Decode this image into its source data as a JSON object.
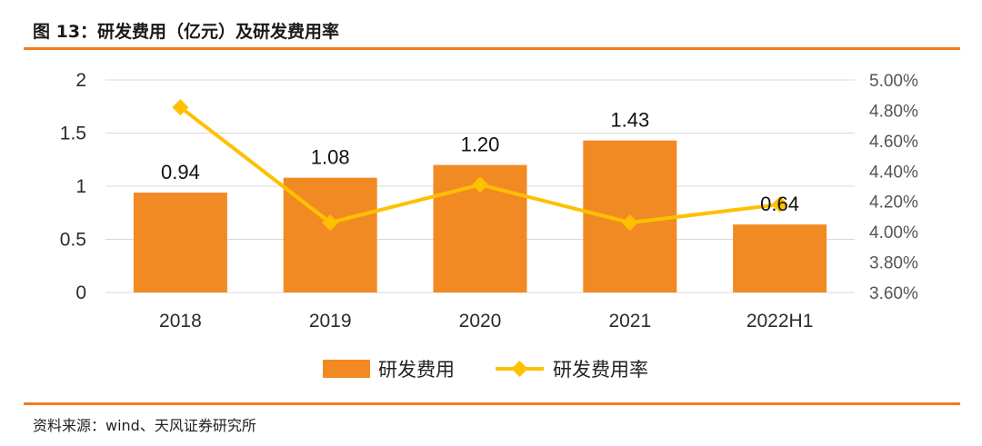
{
  "header": {
    "title": "图 13：研发费用（亿元）及研发费用率"
  },
  "footer": {
    "source": "资料来源：wind、天风证券研究所"
  },
  "colors": {
    "bar": "#f28a24",
    "line": "#ffc000",
    "rule": "#ef7d22"
  },
  "chart_data": {
    "type": "bar+line",
    "categories": [
      "2018",
      "2019",
      "2020",
      "2021",
      "2022H1"
    ],
    "series": [
      {
        "name": "研发费用",
        "type": "bar",
        "axis": "left",
        "values": [
          0.94,
          1.08,
          1.2,
          1.43,
          0.64
        ],
        "labels": [
          "0.94",
          "1.08",
          "1.20",
          "1.43",
          "0.64"
        ]
      },
      {
        "name": "研发费用率",
        "type": "line",
        "axis": "right",
        "values": [
          4.82,
          4.06,
          4.31,
          4.06,
          4.18
        ]
      }
    ],
    "left_axis": {
      "min": 0,
      "max": 2,
      "ticks": [
        0,
        0.5,
        1,
        1.5,
        2
      ],
      "tick_labels": [
        "0",
        "0.5",
        "1",
        "1.5",
        "2"
      ]
    },
    "right_axis": {
      "min": 3.6,
      "max": 5.0,
      "ticks": [
        3.6,
        3.8,
        4.0,
        4.2,
        4.4,
        4.6,
        4.8,
        5.0
      ],
      "tick_labels": [
        "3.60%",
        "3.80%",
        "4.00%",
        "4.20%",
        "4.40%",
        "4.60%",
        "4.80%",
        "5.00%"
      ]
    },
    "legend": {
      "position": "bottom",
      "bar_label": "研发费用",
      "line_label": "研发费用率"
    }
  }
}
